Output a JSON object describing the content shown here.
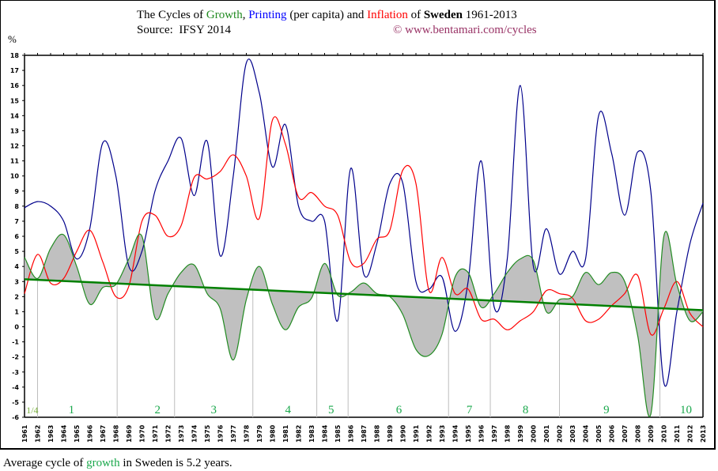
{
  "title": {
    "prefix": "The Cycles of ",
    "growth": "Growth",
    "comma": ",",
    "printing": "Printing",
    "middle": " (per capita) and ",
    "inflation": "Inflation",
    "of": " of ",
    "country": "Sweden",
    "years": " 1961-2013",
    "source": "Source:  IFSY 2014",
    "credit": "© www.bentamari.com/cycles"
  },
  "footer": {
    "prefix": "Average cycle of ",
    "growth": "growth",
    "suffix": " in Sweden is 5.2 years."
  },
  "colors": {
    "growth": "#228b22",
    "printing": "#00008b",
    "inflation": "#ff0000",
    "trend": "#008000",
    "fill": "#c0c0c0",
    "cycle_label": "#1aa84c",
    "credit": "#993366"
  },
  "chart_data": {
    "type": "line",
    "ylabel": "%",
    "ylim": [
      -6,
      18
    ],
    "yticks": [
      -6,
      -5,
      -4,
      -3,
      -2,
      -1,
      0,
      1,
      2,
      3,
      4,
      5,
      6,
      7,
      8,
      9,
      10,
      11,
      12,
      13,
      14,
      15,
      16,
      17,
      18
    ],
    "x": [
      1961,
      1962,
      1963,
      1964,
      1965,
      1966,
      1967,
      1968,
      1969,
      1970,
      1971,
      1972,
      1973,
      1974,
      1975,
      1976,
      1977,
      1978,
      1979,
      1980,
      1981,
      1982,
      1983,
      1984,
      1985,
      1986,
      1987,
      1988,
      1989,
      1990,
      1991,
      1992,
      1993,
      1994,
      1995,
      1996,
      1997,
      1998,
      1999,
      2000,
      2001,
      2002,
      2003,
      2004,
      2005,
      2006,
      2007,
      2008,
      2009,
      2010,
      2011,
      2012,
      2013
    ],
    "series": [
      {
        "name": "Growth",
        "key": "growth",
        "values": [
          4.6,
          3.2,
          5.2,
          6.1,
          4.0,
          1.5,
          2.6,
          2.8,
          4.5,
          6.0,
          0.6,
          2.2,
          3.6,
          4.1,
          2.2,
          1.2,
          -2.2,
          1.8,
          4.0,
          1.5,
          -0.2,
          1.3,
          1.9,
          4.2,
          2.1,
          2.3,
          2.9,
          2.2,
          2.0,
          0.8,
          -1.5,
          -1.9,
          -0.5,
          3.3,
          3.6,
          1.3,
          2.2,
          3.6,
          4.5,
          4.4,
          1.0,
          1.8,
          2.0,
          3.6,
          2.8,
          3.6,
          3.0,
          -0.6,
          -5.8,
          6.0,
          2.8,
          0.4,
          1.0
        ]
      },
      {
        "name": "Printing",
        "key": "printing",
        "values": [
          7.9,
          8.3,
          8.0,
          7.0,
          4.5,
          6.5,
          12.2,
          10.0,
          4.0,
          5.0,
          9.0,
          11.0,
          12.5,
          8.7,
          12.3,
          4.7,
          10.0,
          17.5,
          15.5,
          10.6,
          13.4,
          8.0,
          7.0,
          7.0,
          0.4,
          10.5,
          3.5,
          5.5,
          9.5,
          9.5,
          3.0,
          2.5,
          3.3,
          -0.3,
          3.0,
          11.0,
          1.3,
          4.5,
          16.0,
          4.0,
          6.5,
          3.5,
          5.0,
          4.5,
          14.0,
          11.5,
          7.4,
          11.6,
          9.0,
          -3.7,
          1.0,
          5.5,
          8.2
        ]
      },
      {
        "name": "Inflation",
        "key": "inflation",
        "values": [
          2.2,
          4.8,
          2.9,
          3.2,
          5.0,
          6.4,
          4.3,
          2.0,
          2.7,
          7.0,
          7.4,
          6.0,
          6.7,
          9.9,
          9.8,
          10.3,
          11.4,
          10.0,
          7.2,
          13.7,
          12.1,
          8.6,
          8.9,
          8.0,
          7.4,
          4.3,
          4.2,
          5.8,
          6.4,
          10.4,
          9.5,
          2.4,
          4.6,
          2.2,
          2.5,
          0.5,
          0.5,
          -0.2,
          0.4,
          1.0,
          2.4,
          2.2,
          1.9,
          0.4,
          0.5,
          1.4,
          2.2,
          3.4,
          -0.5,
          1.2,
          3.0,
          0.9,
          0.0
        ]
      }
    ],
    "trend": {
      "start": [
        1961,
        3.15
      ],
      "end": [
        2013,
        1.1
      ]
    },
    "cycle_boundaries": [
      1962,
      1968.1,
      1972.5,
      1978.5,
      1983.4,
      1985.8,
      1993.5,
      1996.7,
      2002,
      2009.7
    ],
    "cycle_labels": [
      {
        "text": "1/4",
        "year": 1961.6
      },
      {
        "text": "1",
        "year": 1964.6
      },
      {
        "text": "2",
        "year": 1971.2
      },
      {
        "text": "3",
        "year": 1975.5
      },
      {
        "text": "4",
        "year": 1981.2
      },
      {
        "text": "5",
        "year": 1984.5
      },
      {
        "text": "6",
        "year": 1989.7
      },
      {
        "text": "7",
        "year": 1995.1
      },
      {
        "text": "8",
        "year": 1999.4
      },
      {
        "text": "9",
        "year": 2005.6
      },
      {
        "text": "10",
        "year": 2011.7
      }
    ]
  }
}
